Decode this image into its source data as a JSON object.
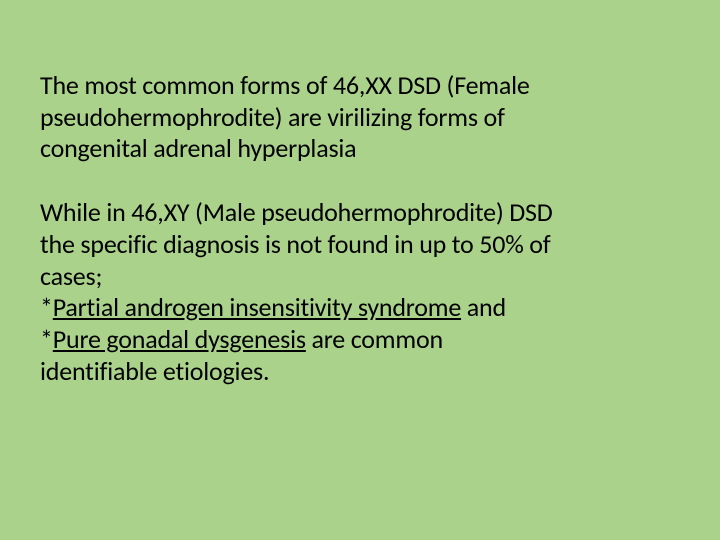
{
  "slide": {
    "background_color": "#aad28b",
    "text_color": "#000000",
    "font_family": "Calibri",
    "font_size_pt": 20,
    "paragraphs": [
      {
        "lines": [
          "The most common forms of 46,XX DSD (Female",
          "pseudohermophrodite) are virilizing forms of",
          "congenital adrenal hyperplasia"
        ]
      },
      {
        "lines": [
          "While in 46,XY (Male pseudohermophrodite)  DSD",
          "the specific diagnosis is not found in up to 50% of",
          "cases;",
          "*",
          "Partial androgen insensitivity syndrome",
          " and",
          "*",
          "Pure gonadal dysgenesis",
          " are common",
          "identifiable etiologies."
        ],
        "underlined_segments": [
          4,
          7
        ]
      }
    ]
  }
}
